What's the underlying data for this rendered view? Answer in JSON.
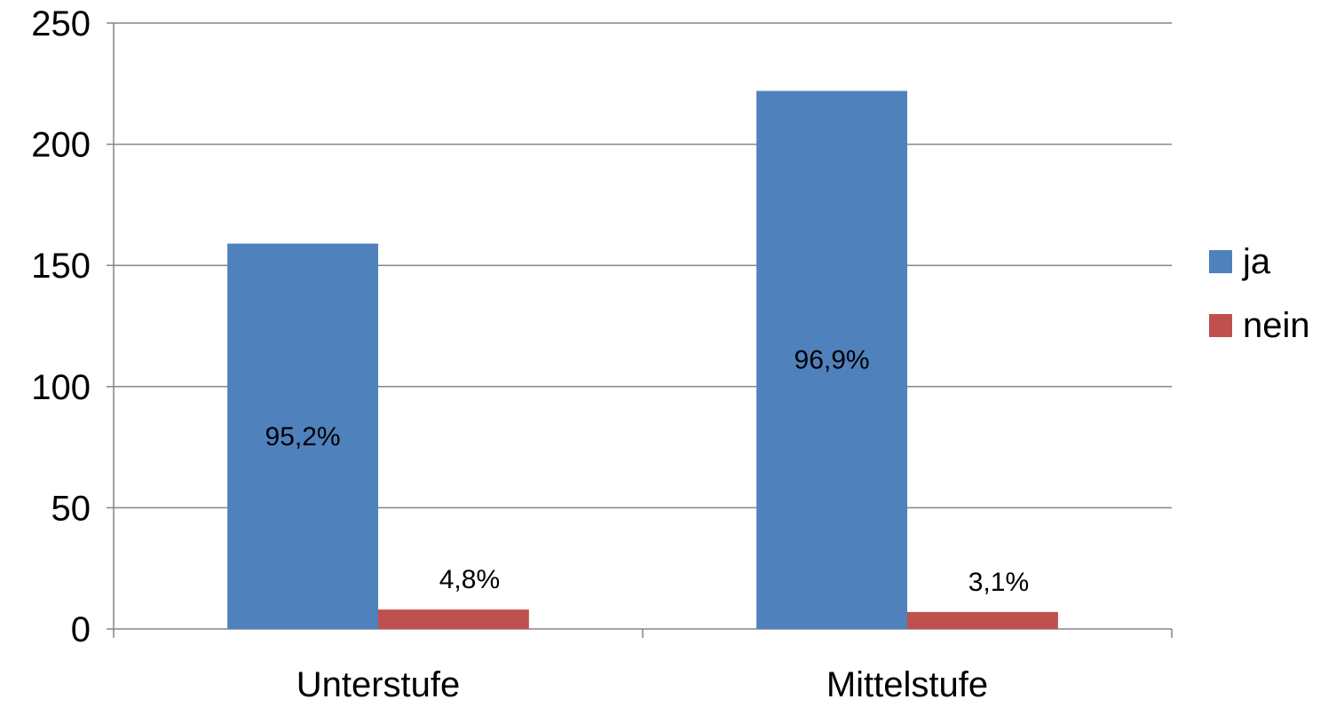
{
  "chart_data": {
    "type": "bar",
    "categories": [
      "Unterstufe",
      "Mittelstufe"
    ],
    "series": [
      {
        "name": "ja",
        "color": "#4F81BD",
        "values": [
          159,
          222
        ],
        "labels": [
          "95,2%",
          "96,9%"
        ]
      },
      {
        "name": "nein",
        "color": "#C0504D",
        "values": [
          8,
          7
        ],
        "labels": [
          "4,8%",
          "3,1%"
        ]
      }
    ],
    "ylim": [
      0,
      250
    ],
    "yticks": [
      0,
      50,
      100,
      150,
      200,
      250
    ],
    "grid": true,
    "legend": "right"
  }
}
